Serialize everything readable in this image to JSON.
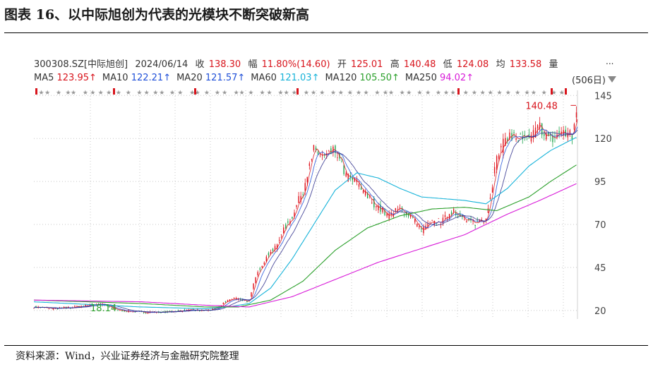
{
  "title": "图表 16、以中际旭创为代表的光模块不断突破新高",
  "source": "资料来源：Wind，兴业证券经济与金融研究院整理",
  "quote": {
    "code": "300308.SZ[中际旭创]",
    "date": "2024/06/14",
    "close_label": "收",
    "close": "138.30",
    "change_label": "幅",
    "change": "11.80%(14.60)",
    "open_label": "开",
    "open": "125.01",
    "high_label": "高",
    "high": "140.48",
    "low_label": "低",
    "low": "124.08",
    "avg_label": "均",
    "avg": "133.58",
    "vol_label": "量",
    "more": "...",
    "days": "506日"
  },
  "ma": [
    {
      "label": "MA5",
      "value": "123.95↑",
      "color": "#d8141c"
    },
    {
      "label": "MA10",
      "value": "122.21↑",
      "color": "#1f4fd8"
    },
    {
      "label": "MA20",
      "value": "121.57↑",
      "color": "#1f4fd8"
    },
    {
      "label": "MA60",
      "value": "121.03↑",
      "color": "#17b3d9"
    },
    {
      "label": "MA120",
      "value": "105.50↑",
      "color": "#2ca02c"
    },
    {
      "label": "MA250",
      "value": "94.02↑",
      "color": "#d81bd8"
    }
  ],
  "chart_data": {
    "type": "line",
    "title": "以中际旭创为代表的光模块不断突破新高",
    "xlabel": "",
    "ylabel": "",
    "ylim": [
      15,
      148
    ],
    "yticks": [
      20,
      45,
      70,
      95,
      120,
      145
    ],
    "n_bars": 506,
    "price": {
      "x": [
        0,
        20,
        40,
        60,
        80,
        100,
        120,
        140,
        160,
        170,
        180,
        190,
        200,
        205,
        210,
        215,
        220,
        225,
        230,
        240,
        250,
        260,
        270,
        280,
        290,
        300,
        310,
        320,
        330,
        340,
        350,
        360,
        370,
        380,
        390,
        400,
        410,
        420,
        430,
        440,
        450,
        460,
        470,
        480,
        490,
        500,
        505
      ],
      "values": [
        22,
        21,
        22,
        24,
        20,
        19,
        19,
        20,
        20,
        21,
        26,
        27,
        25,
        37,
        45,
        50,
        55,
        56,
        65,
        75,
        90,
        113,
        109,
        113,
        98,
        94,
        86,
        80,
        75,
        79,
        75,
        66,
        71,
        72,
        79,
        72,
        71,
        74,
        108,
        122,
        120,
        119,
        127,
        119,
        124,
        121,
        138
      ]
    },
    "series": [
      {
        "name": "MA60",
        "x": [
          0,
          100,
          160,
          180,
          200,
          220,
          240,
          260,
          280,
          300,
          320,
          340,
          360,
          380,
          400,
          420,
          440,
          460,
          480,
          505
        ],
        "values": [
          25,
          22,
          21,
          22,
          24,
          33,
          50,
          70,
          90,
          100,
          97,
          91,
          86,
          85,
          84,
          82,
          91,
          104,
          113,
          121
        ]
      },
      {
        "name": "MA120",
        "x": [
          0,
          100,
          160,
          190,
          220,
          250,
          280,
          310,
          340,
          370,
          400,
          430,
          460,
          480,
          505
        ],
        "values": [
          26,
          24,
          22,
          22,
          26,
          37,
          55,
          68,
          75,
          79,
          80,
          78,
          86,
          95,
          105
        ]
      },
      {
        "name": "MA250",
        "x": [
          0,
          100,
          160,
          200,
          240,
          280,
          320,
          360,
          400,
          440,
          470,
          505
        ],
        "values": [
          26,
          25,
          23,
          22,
          28,
          38,
          48,
          56,
          64,
          76,
          84,
          94
        ]
      }
    ],
    "annotations": [
      {
        "text": "140.48",
        "x": 500,
        "y": 140.48,
        "color": "#d8141c"
      },
      {
        "text": "18.14",
        "x": 60,
        "y": 18.14,
        "color": "#2ca02c"
      }
    ]
  }
}
